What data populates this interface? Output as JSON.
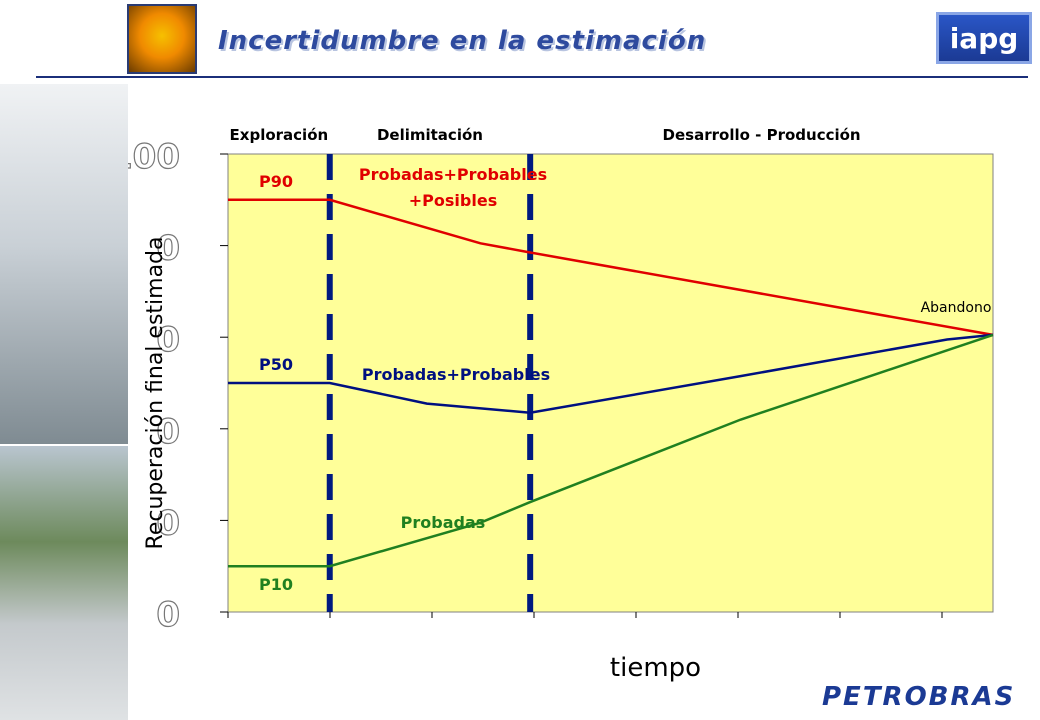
{
  "header": {
    "title": "Incertidumbre en la estimación",
    "logo_right": "iapg",
    "brand_footer": "PETROBRAS",
    "title_color": "#2e4a9e"
  },
  "chart_data": {
    "type": "line",
    "title": "",
    "xlabel": "tiempo",
    "ylabel": "Recuperación final estimada",
    "y_tick_labels": [
      "100",
      "0",
      "0",
      "0",
      "0",
      "0"
    ],
    "ylim": [
      0,
      100
    ],
    "x_range": [
      0,
      1
    ],
    "plot_background": "#ffff99",
    "phases": [
      "Exploración",
      "Delimitación",
      "Desarrollo - Producción"
    ],
    "phase_boundaries": [
      0.133,
      0.395
    ],
    "boundary_color": "#001a80",
    "annotations": {
      "abandon": "Abandono",
      "upper_curve": "Probadas+Probables\n+Posibles",
      "mid_curve": "Probadas+Probables",
      "low_curve": "Probadas"
    },
    "series": [
      {
        "name": "P90",
        "color": "#e00000",
        "x": [
          0,
          0.133,
          0.33,
          0.395,
          1.0
        ],
        "y": [
          90,
          90,
          80.5,
          78.5,
          60.5
        ]
      },
      {
        "name": "P50",
        "color": "#001080",
        "x": [
          0,
          0.133,
          0.26,
          0.395,
          0.67,
          0.94,
          1.0
        ],
        "y": [
          50,
          50,
          45.5,
          43.5,
          51.5,
          59.5,
          60.5
        ]
      },
      {
        "name": "P10",
        "color": "#208020",
        "x": [
          0,
          0.133,
          0.33,
          0.395,
          0.67,
          1.0
        ],
        "y": [
          10,
          10,
          19.5,
          24,
          42,
          60.5
        ]
      }
    ]
  }
}
